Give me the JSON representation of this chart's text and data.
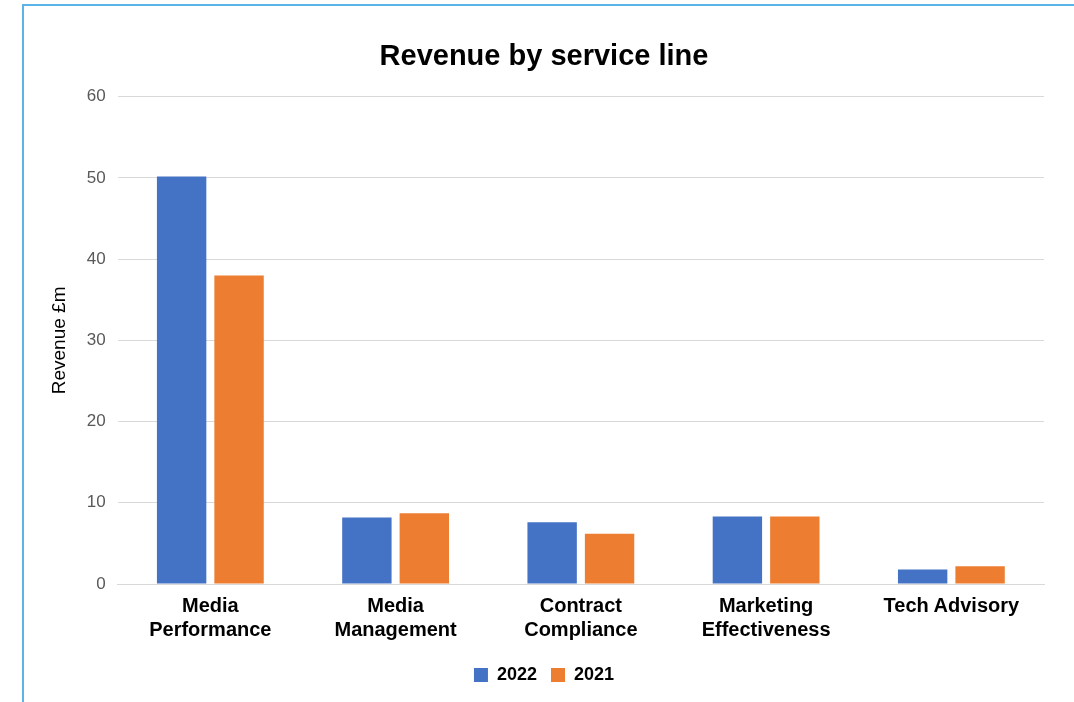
{
  "chart_data": {
    "type": "bar",
    "title": "Revenue by service line",
    "ylabel": "Revenue £m",
    "categories": [
      "Media Performance",
      "Media Management",
      "Contract Compliance",
      "Marketing Effectiveness",
      "Tech Advisory"
    ],
    "series": [
      {
        "name": "2022",
        "color": "#4472c4",
        "values": [
          50.2,
          8.2,
          7.6,
          8.3,
          1.8
        ]
      },
      {
        "name": "2021",
        "color": "#ed7d31",
        "values": [
          38.0,
          8.7,
          6.2,
          8.3,
          2.2
        ]
      }
    ],
    "ylim": [
      0,
      60
    ],
    "yticks": [
      0,
      10,
      20,
      30,
      40,
      50,
      60
    ],
    "grid": "y",
    "legend": "bottom"
  }
}
